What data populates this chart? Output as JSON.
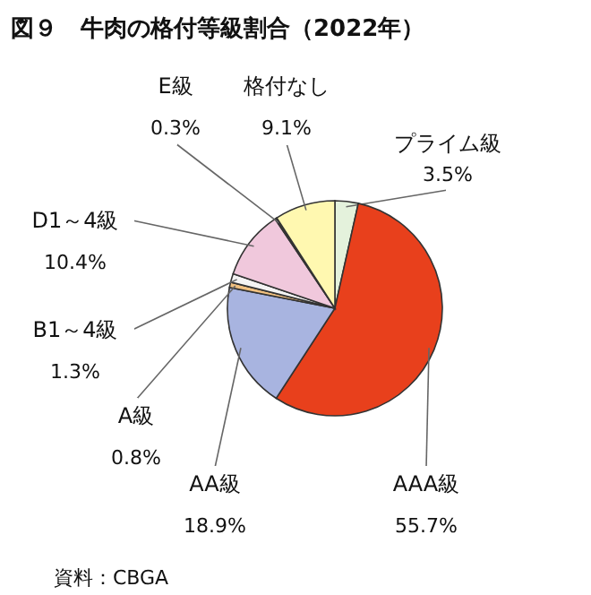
{
  "chart_data": {
    "type": "pie",
    "title": "図９　牛肉の格付等級割合（2022年）",
    "categories": [
      "プライム級",
      "AAA級",
      "AA級",
      "A級",
      "B1～4級",
      "D1～4級",
      "E級",
      "格付なし"
    ],
    "values": [
      3.5,
      55.7,
      18.9,
      0.8,
      1.3,
      10.4,
      0.3,
      9.1
    ],
    "value_labels": [
      "3.5%",
      "55.7%",
      "18.9%",
      "0.8%",
      "1.3%",
      "10.4%",
      "0.3%",
      "9.1%"
    ],
    "colors": [
      "#e4f2dc",
      "#e8401c",
      "#a8b4e0",
      "#f0c080",
      "#f4f4f4",
      "#f0c8dc",
      "#404040",
      "#fff8b0"
    ],
    "annotations": [
      "資料：CBGA"
    ]
  }
}
